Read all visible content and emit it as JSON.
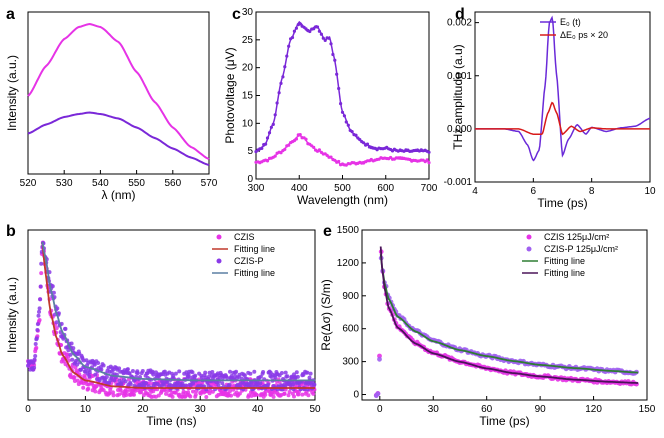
{
  "panel_labels": {
    "a": "a",
    "b": "b",
    "c": "c",
    "d": "d",
    "e": "e"
  },
  "chart_data": [
    {
      "panel": "a",
      "type": "line",
      "xlabel": "λ (nm)",
      "ylabel": "Intensity (a.u.)",
      "xlim": [
        520,
        570
      ],
      "xticks": [
        "520",
        "530",
        "540",
        "550",
        "560",
        "570"
      ],
      "colors": [
        "#e633e6",
        "#7a28d8"
      ],
      "series": [
        {
          "x": [
            520,
            525,
            530,
            534,
            537,
            540,
            545,
            550,
            555,
            560,
            565,
            570
          ],
          "values": [
            0.52,
            0.72,
            0.9,
            0.98,
            1.0,
            0.98,
            0.88,
            0.68,
            0.48,
            0.31,
            0.18,
            0.1
          ]
        },
        {
          "x": [
            520,
            525,
            530,
            534,
            537,
            540,
            545,
            550,
            555,
            560,
            565,
            570
          ],
          "values": [
            0.27,
            0.33,
            0.38,
            0.4,
            0.41,
            0.4,
            0.37,
            0.31,
            0.24,
            0.17,
            0.11,
            0.06
          ]
        }
      ]
    },
    {
      "panel": "c",
      "type": "line",
      "xlabel": "Wavelength (nm)",
      "ylabel": "Photovoltage (μV)",
      "xlim": [
        300,
        700
      ],
      "ylim": [
        0,
        30
      ],
      "xticks": [
        "300",
        "400",
        "500",
        "600",
        "700"
      ],
      "yticks": [
        "0",
        "5",
        "10",
        "15",
        "20",
        "25",
        "30"
      ],
      "colors": [
        "#e633e6",
        "#7a28d8"
      ],
      "series": [
        {
          "x": [
            300,
            330,
            360,
            380,
            400,
            410,
            420,
            440,
            460,
            480,
            500,
            520,
            560,
            600,
            650,
            700
          ],
          "values": [
            3.0,
            3.5,
            5.0,
            6.5,
            7.8,
            7.5,
            6.5,
            5.2,
            4.5,
            3.5,
            2.5,
            2.8,
            3.2,
            3.8,
            3.5,
            3.2
          ]
        },
        {
          "x": [
            300,
            320,
            340,
            360,
            380,
            400,
            420,
            440,
            460,
            470,
            480,
            500,
            520,
            540,
            560,
            580,
            600,
            630,
            660,
            700
          ],
          "values": [
            5.0,
            6.0,
            10.0,
            18.0,
            25.0,
            28.2,
            26.5,
            27.5,
            25.0,
            25.5,
            22.0,
            12.0,
            8.5,
            7.0,
            6.0,
            5.5,
            5.5,
            5.0,
            5.0,
            5.0
          ]
        }
      ]
    },
    {
      "panel": "d",
      "type": "line",
      "xlabel": "Time (ps)",
      "ylabel": "THz amplitude (a.u)",
      "xlim": [
        4,
        10
      ],
      "ylim": [
        -0.001,
        0.0022
      ],
      "xticks": [
        "4",
        "6",
        "8",
        "10"
      ],
      "yticks": [
        "-0.001",
        "0.000",
        "0.001",
        "0.002"
      ],
      "legend_position": "top-right",
      "series": [
        {
          "name": "E₀ (t)",
          "color": "#6a2ad8",
          "x": [
            4,
            5.0,
            5.5,
            5.8,
            6.0,
            6.2,
            6.4,
            6.55,
            6.65,
            6.8,
            7.0,
            7.2,
            7.5,
            7.8,
            8.0,
            8.5,
            9.0,
            9.5,
            10
          ],
          "values": [
            0,
            0,
            -5e-05,
            -0.0003,
            -0.0006,
            -0.0004,
            0.0008,
            0.002,
            0.0021,
            0.001,
            -0.0005,
            -0.0002,
            8e-05,
            -0.0001,
            3e-05,
            -5e-05,
            2e-05,
            5e-05,
            0.0002
          ]
        },
        {
          "name": "ΔE₀ ps × 20",
          "color": "#d81a1a",
          "x": [
            4,
            5.5,
            6.0,
            6.3,
            6.5,
            6.65,
            6.8,
            7.0,
            7.3,
            7.6,
            8.0,
            8.5,
            9.0,
            10
          ],
          "values": [
            0,
            0,
            -0.0001,
            -0.0001,
            0.0003,
            0.0005,
            0.0003,
            -0.0001,
            5e-05,
            -5e-05,
            2e-05,
            0,
            0,
            0
          ]
        }
      ]
    },
    {
      "panel": "b",
      "type": "scatter",
      "xlabel": "Time (ns)",
      "ylabel": "Intensity (a.u.)",
      "xlim": [
        0,
        50
      ],
      "xticks": [
        "0",
        "10",
        "20",
        "30",
        "40",
        "50"
      ],
      "legend_position": "top-right",
      "series": [
        {
          "name": "CZIS",
          "kind": "scatter",
          "color": "#e633e6",
          "x": [
            0,
            1,
            2,
            2.5,
            3,
            4,
            5,
            6,
            8,
            10,
            15,
            20,
            30,
            40,
            50
          ],
          "values": [
            0.18,
            0.18,
            0.5,
            1.0,
            0.85,
            0.55,
            0.38,
            0.25,
            0.12,
            0.07,
            0.04,
            0.03,
            0.03,
            0.03,
            0.03
          ]
        },
        {
          "name": "Fitting line",
          "kind": "line",
          "color": "#c0392b",
          "x": [
            2.5,
            3,
            4,
            5,
            6,
            8,
            10,
            15,
            20,
            30,
            40,
            50
          ],
          "values": [
            1.0,
            0.8,
            0.52,
            0.36,
            0.25,
            0.13,
            0.08,
            0.04,
            0.03,
            0.03,
            0.03,
            0.03
          ]
        },
        {
          "name": "CZIS-P",
          "kind": "scatter",
          "color": "#8a3ae8",
          "x": [
            0,
            1,
            2,
            2.5,
            3,
            4,
            5,
            6,
            8,
            10,
            15,
            20,
            30,
            40,
            50
          ],
          "values": [
            0.18,
            0.18,
            0.55,
            1.0,
            0.92,
            0.7,
            0.52,
            0.4,
            0.25,
            0.17,
            0.11,
            0.09,
            0.08,
            0.08,
            0.08
          ]
        },
        {
          "name": "Fitting line",
          "kind": "line",
          "color": "#5b7fa3",
          "x": [
            2.5,
            3,
            4,
            5,
            6,
            8,
            10,
            15,
            20,
            30,
            40,
            50
          ],
          "values": [
            1.0,
            0.9,
            0.68,
            0.52,
            0.4,
            0.25,
            0.17,
            0.11,
            0.09,
            0.08,
            0.08,
            0.08
          ]
        }
      ]
    },
    {
      "panel": "e",
      "type": "scatter",
      "xlabel": "Time (ps)",
      "ylabel": "Re(Δσ) (S/m)",
      "xlim": [
        -10,
        150
      ],
      "ylim": [
        -50,
        1500
      ],
      "xticks": [
        "0",
        "30",
        "60",
        "90",
        "120",
        "150"
      ],
      "yticks": [
        "0",
        "300",
        "600",
        "900",
        "1200",
        "1500"
      ],
      "legend_position": "top-right",
      "series": [
        {
          "name": "CZIS  125μJ/cm²",
          "kind": "scatter",
          "color": "#e633e6",
          "x": [
            -2,
            -1,
            0,
            0.5,
            1,
            3,
            5,
            10,
            20,
            30,
            45,
            60,
            75,
            90,
            110,
            130,
            145
          ],
          "values": [
            0,
            0,
            400,
            1400,
            1200,
            950,
            800,
            620,
            470,
            380,
            300,
            240,
            195,
            165,
            135,
            115,
            105
          ]
        },
        {
          "name": "CZIS-P  125μJ/cm²",
          "kind": "scatter",
          "color": "#a060f0",
          "x": [
            -2,
            -1,
            0,
            0.5,
            1,
            3,
            5,
            10,
            20,
            30,
            45,
            60,
            75,
            90,
            110,
            130,
            145
          ],
          "values": [
            0,
            0,
            350,
            1300,
            1200,
            1000,
            880,
            720,
            580,
            490,
            410,
            350,
            305,
            270,
            240,
            215,
            200
          ]
        },
        {
          "name": "Fitting line",
          "kind": "line",
          "color": "#2e7d32",
          "x": [
            0.5,
            1,
            3,
            5,
            10,
            20,
            30,
            45,
            60,
            75,
            90,
            110,
            130,
            145
          ],
          "values": [
            1280,
            1180,
            990,
            870,
            710,
            575,
            485,
            405,
            350,
            305,
            270,
            240,
            215,
            200
          ]
        },
        {
          "name": "Fitting line",
          "kind": "line",
          "color": "#4a1458",
          "x": [
            0.5,
            1,
            3,
            5,
            10,
            20,
            30,
            45,
            60,
            75,
            90,
            110,
            130,
            145
          ],
          "values": [
            1350,
            1180,
            940,
            790,
            610,
            465,
            375,
            298,
            238,
            195,
            165,
            135,
            115,
            105
          ]
        }
      ]
    }
  ]
}
